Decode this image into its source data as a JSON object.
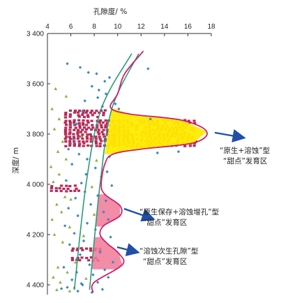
{
  "chart_data": {
    "type": "scatter",
    "title": "",
    "xlabel": "孔隙度/ %",
    "ylabel": "深度/ m",
    "xlim": [
      4,
      18
    ],
    "ylim": [
      3400,
      4450
    ],
    "y_inverted": true,
    "x_axis_position": "top",
    "grid": false,
    "xticks": [
      "4",
      "6",
      "8",
      "10",
      "12",
      "14",
      "16",
      "18"
    ],
    "yticks": [
      "3 400",
      "3 600",
      "3 800",
      "4 000",
      "4 200",
      "4 400"
    ],
    "xtick_values": [
      4,
      6,
      8,
      10,
      12,
      14,
      16,
      18
    ],
    "ytick_values": [
      3400,
      3600,
      3800,
      4000,
      4200,
      4400
    ],
    "colors": {
      "bands": "#b82a55",
      "blue_points": "#3a86c8",
      "green_points": "#8fae3a",
      "trend_lines": "#2a9a7a",
      "envelope": "#d0206a",
      "zone1_fill": "#ffeb00",
      "zone_pink_fill": "#f07898",
      "arrow": "#1f4fa8"
    },
    "dense_bands": [
      {
        "x_from": 5.4,
        "x_to": 8.8,
        "y_from": 3700,
        "y_to": 3735
      },
      {
        "x_from": 5.4,
        "x_to": 9.6,
        "y_from": 3740,
        "y_to": 3850
      },
      {
        "x_from": 9.6,
        "x_to": 16.5,
        "y_from": 3740,
        "y_to": 3850
      },
      {
        "x_from": 4.2,
        "x_to": 6.5,
        "y_from": 4000,
        "y_to": 4030
      },
      {
        "x_from": 6.0,
        "x_to": 8.4,
        "y_from": 4250,
        "y_to": 4265
      },
      {
        "x_from": 6.0,
        "x_to": 8.4,
        "y_from": 4285,
        "y_to": 4305
      }
    ],
    "trend_lines": [
      {
        "name": "",
        "points": [
          [
            6.3,
            4420
          ],
          [
            7.3,
            4000
          ],
          [
            8.6,
            3700
          ],
          [
            11.2,
            3480
          ]
        ]
      },
      {
        "name": "",
        "points": [
          [
            7.6,
            4420
          ],
          [
            8.5,
            4000
          ],
          [
            9.5,
            3700
          ],
          [
            11.8,
            3480
          ]
        ]
      }
    ],
    "envelope": {
      "points": [
        [
          12.2,
          3470
        ],
        [
          10.6,
          3560
        ],
        [
          10.0,
          3640
        ],
        [
          9.4,
          3695
        ],
        [
          11.0,
          3720
        ],
        [
          15.5,
          3745
        ],
        [
          17.6,
          3790
        ],
        [
          16.5,
          3835
        ],
        [
          12.0,
          3860
        ],
        [
          9.6,
          3880
        ],
        [
          8.9,
          3920
        ],
        [
          8.6,
          4000
        ],
        [
          8.9,
          4040
        ],
        [
          10.2,
          4085
        ],
        [
          10.2,
          4125
        ],
        [
          8.8,
          4165
        ],
        [
          8.5,
          4200
        ],
        [
          9.1,
          4235
        ],
        [
          10.1,
          4275
        ],
        [
          10.4,
          4320
        ],
        [
          8.0,
          4390
        ],
        [
          7.9,
          4430
        ]
      ]
    },
    "zones": [
      {
        "label_line1": "“原生+溶蚀”型",
        "label_line2": "“甜点”发育区",
        "depth_from": 3700,
        "depth_to": 3880
      },
      {
        "label_line1": "“原生保存+溶蚀增孔”型",
        "label_line2": "“甜点”发育区",
        "depth_from": 4040,
        "depth_to": 4170
      },
      {
        "label_line1": "“溶蚀次生孔隙”型",
        "label_line2": "“甜点”发育区",
        "depth_from": 4210,
        "depth_to": 4340
      }
    ],
    "points_blue": [
      [
        6.8,
        3535
      ],
      [
        7.5,
        3555
      ],
      [
        8.2,
        3560
      ],
      [
        9.3,
        3575
      ],
      [
        8.9,
        3590
      ],
      [
        7.8,
        3610
      ],
      [
        8.4,
        3625
      ],
      [
        9.0,
        3640
      ],
      [
        8.3,
        3655
      ],
      [
        7.2,
        3668
      ],
      [
        9.8,
        3680
      ],
      [
        8.7,
        3690
      ],
      [
        10.1,
        3700
      ],
      [
        7.0,
        3710
      ],
      [
        6.5,
        3760
      ],
      [
        6.2,
        3820
      ],
      [
        5.8,
        3860
      ],
      [
        6.7,
        3880
      ],
      [
        9.3,
        3890
      ],
      [
        7.4,
        3900
      ],
      [
        6.1,
        3920
      ],
      [
        8.1,
        3935
      ],
      [
        9.1,
        3950
      ],
      [
        7.3,
        3960
      ],
      [
        8.6,
        3970
      ],
      [
        5.6,
        3985
      ],
      [
        6.9,
        3995
      ],
      [
        9.5,
        4005
      ],
      [
        7.2,
        4030
      ],
      [
        8.3,
        4045
      ],
      [
        6.4,
        4055
      ],
      [
        9.0,
        4065
      ],
      [
        7.7,
        4080
      ],
      [
        5.8,
        4095
      ],
      [
        8.8,
        4110
      ],
      [
        6.6,
        4125
      ],
      [
        9.2,
        4140
      ],
      [
        7.4,
        4155
      ],
      [
        5.5,
        4165
      ],
      [
        8.1,
        4180
      ],
      [
        6.3,
        4195
      ],
      [
        9.4,
        4210
      ],
      [
        7.1,
        4225
      ],
      [
        5.9,
        4240
      ],
      [
        8.5,
        4270
      ],
      [
        6.8,
        4280
      ],
      [
        9.6,
        4310
      ],
      [
        7.6,
        4320
      ],
      [
        5.4,
        4330
      ],
      [
        8.9,
        4340
      ],
      [
        6.5,
        4350
      ],
      [
        7.9,
        4360
      ],
      [
        9.2,
        4370
      ],
      [
        6.1,
        4380
      ],
      [
        8.3,
        4390
      ],
      [
        7.0,
        4400
      ],
      [
        5.7,
        4410
      ],
      [
        8.7,
        4418
      ],
      [
        6.6,
        4425
      ],
      [
        7.8,
        4430
      ],
      [
        5.2,
        4415
      ],
      [
        6.9,
        4395
      ],
      [
        12.6,
        3540
      ],
      [
        12.8,
        3740
      ],
      [
        13.4,
        3875
      ],
      [
        15.2,
        3870
      ],
      [
        5.7,
        3520
      ]
    ],
    "points_green": [
      [
        4.7,
        3620
      ],
      [
        5.6,
        3650
      ],
      [
        4.4,
        3700
      ],
      [
        5.0,
        3740
      ],
      [
        4.6,
        3780
      ],
      [
        5.3,
        3830
      ],
      [
        4.9,
        3870
      ],
      [
        5.6,
        3900
      ],
      [
        4.3,
        3930
      ],
      [
        5.0,
        3960
      ],
      [
        4.5,
        3990
      ],
      [
        5.5,
        4050
      ],
      [
        4.8,
        4080
      ],
      [
        5.2,
        4110
      ],
      [
        4.4,
        4140
      ],
      [
        5.9,
        4170
      ],
      [
        4.6,
        4200
      ],
      [
        5.3,
        4230
      ],
      [
        4.9,
        4330
      ],
      [
        5.7,
        4350
      ],
      [
        4.5,
        4370
      ],
      [
        5.1,
        4390
      ],
      [
        6.3,
        4410
      ],
      [
        4.8,
        4420
      ],
      [
        5.9,
        4425
      ],
      [
        6.9,
        3810
      ],
      [
        8.2,
        3905
      ],
      [
        7.8,
        4010
      ],
      [
        6.0,
        4060
      ],
      [
        7.1,
        4205
      ],
      [
        6.4,
        4310
      ],
      [
        7.3,
        4375
      ],
      [
        8.0,
        4120
      ]
    ]
  }
}
